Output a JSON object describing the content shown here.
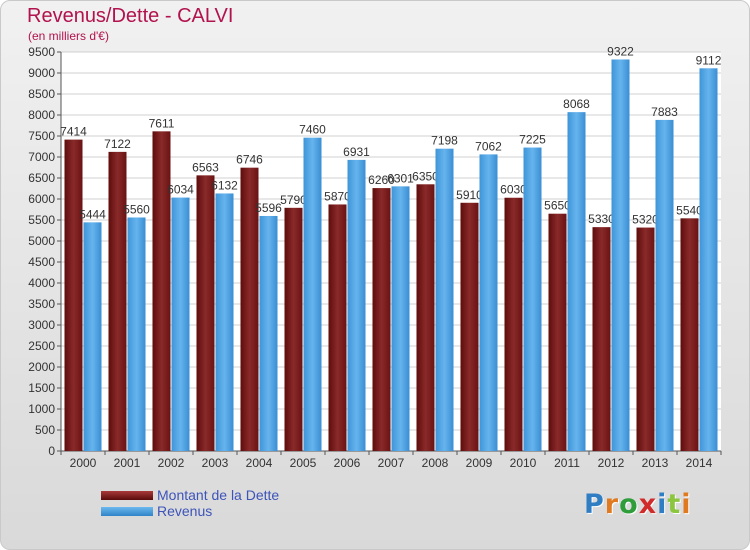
{
  "header": {
    "title": "Revenus/Dette - CALVI",
    "subtitle": "(en milliers d'€)"
  },
  "colors": {
    "title": "#b2124d",
    "debt": "#7a1c1c",
    "revenue": "#4aa0e0",
    "legend_text": "#3d54b9"
  },
  "legend": {
    "debt_label": "Montant de la Dette",
    "revenue_label": "Revenus"
  },
  "logo": {
    "text": "Proxiti",
    "letters": [
      "P",
      "r",
      "o",
      "x",
      "i",
      "t",
      "i"
    ],
    "letter_colors": [
      "#2f7ec4",
      "#e07a20",
      "#2f9e3a",
      "#d02a2a",
      "#2f7ec4",
      "#8cc63f",
      "#e07a20"
    ]
  },
  "chart_data": {
    "type": "bar",
    "categories": [
      "2000",
      "2001",
      "2002",
      "2003",
      "2004",
      "2005",
      "2006",
      "2007",
      "2008",
      "2009",
      "2010",
      "2011",
      "2012",
      "2013",
      "2014"
    ],
    "series": [
      {
        "name": "Montant de la Dette",
        "values": [
          7414,
          7122,
          7611,
          6563,
          6746,
          5790,
          5870,
          6260,
          6350,
          5910,
          6030,
          5650,
          5330,
          5320,
          5540
        ],
        "labels": [
          "7414",
          "7122",
          "7611",
          "6563",
          "6746",
          "5790",
          "5870",
          "6260",
          "6350",
          "5910",
          "6030",
          "5650",
          "5330",
          "5320",
          "5540"
        ]
      },
      {
        "name": "Revenus",
        "values": [
          5444,
          5560,
          6034,
          6132,
          5596,
          7460,
          6931,
          6301,
          7198,
          7062,
          7225,
          8068,
          9322,
          7883,
          9112
        ],
        "labels": [
          "5444",
          "5560",
          "6034",
          "6132",
          "5596",
          "7460",
          "6931",
          "6301",
          "7198",
          "7062",
          "7225",
          "8068",
          "9322",
          "7883",
          "9112"
        ]
      }
    ],
    "yticks": [
      0,
      500,
      1000,
      1500,
      2000,
      2500,
      3000,
      3500,
      4000,
      4500,
      5000,
      5500,
      6000,
      6500,
      7000,
      7500,
      8000,
      8500,
      9000,
      9500
    ],
    "ylim": [
      0,
      9500
    ],
    "grid": true,
    "title": "Revenus/Dette - CALVI",
    "xlabel": "",
    "ylabel": "(en milliers d'€)"
  }
}
